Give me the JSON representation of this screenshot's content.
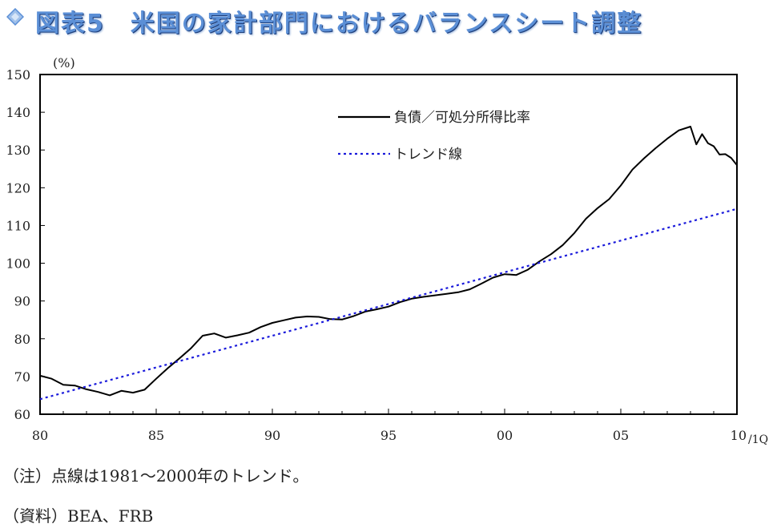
{
  "title": "図表5　米国の家計部門におけるバランスシート調整",
  "notes": {
    "note": "（注）点線は1981～2000年のトレンド。",
    "source": "（資料）BEA、FRB"
  },
  "colors": {
    "title": "#5b8fd6",
    "series_actual": "#000000",
    "series_trend": "#1a1adb"
  },
  "chart_data": {
    "type": "line",
    "unit_label": "(%)",
    "x_tick_labels": [
      "80",
      "85",
      "90",
      "95",
      "00",
      "05",
      "10"
    ],
    "x_end_suffix": "/1Q",
    "ylim": [
      60,
      150
    ],
    "y_ticks": [
      60,
      70,
      80,
      90,
      100,
      110,
      120,
      130,
      140,
      150
    ],
    "xlim": [
      1980.0,
      2010.0
    ],
    "grid": false,
    "legend_position": "top-right inside",
    "series": [
      {
        "name": "負債／可処分所得比率",
        "style": "solid",
        "x": [
          1980.0,
          1980.5,
          1981.0,
          1981.5,
          1982.0,
          1982.5,
          1983.0,
          1983.5,
          1984.0,
          1984.5,
          1985.0,
          1985.5,
          1986.0,
          1986.5,
          1987.0,
          1987.5,
          1988.0,
          1988.5,
          1989.0,
          1989.5,
          1990.0,
          1990.5,
          1991.0,
          1991.5,
          1992.0,
          1992.5,
          1993.0,
          1993.5,
          1994.0,
          1994.5,
          1995.0,
          1995.5,
          1996.0,
          1996.5,
          1997.0,
          1997.5,
          1998.0,
          1998.5,
          1999.0,
          1999.5,
          2000.0,
          2000.5,
          2001.0,
          2001.5,
          2002.0,
          2002.5,
          2003.0,
          2003.5,
          2004.0,
          2004.5,
          2005.0,
          2005.5,
          2006.0,
          2006.5,
          2007.0,
          2007.5,
          2008.0,
          2008.25,
          2008.5,
          2008.75,
          2009.0,
          2009.25,
          2009.5,
          2009.75,
          2010.0
        ],
        "values": [
          70.2,
          69.4,
          67.8,
          67.6,
          66.6,
          65.9,
          65.0,
          66.2,
          65.7,
          66.5,
          69.4,
          72.2,
          74.8,
          77.5,
          80.8,
          81.4,
          80.3,
          80.9,
          81.6,
          83.1,
          84.2,
          84.9,
          85.6,
          85.9,
          85.8,
          85.2,
          85.1,
          86.0,
          87.2,
          87.8,
          88.5,
          89.7,
          90.6,
          91.1,
          91.5,
          91.9,
          92.3,
          93.1,
          94.6,
          96.2,
          97.1,
          96.9,
          98.3,
          100.5,
          102.4,
          104.8,
          108.0,
          111.8,
          114.6,
          117.0,
          120.6,
          124.8,
          127.8,
          130.5,
          133.0,
          135.2,
          136.2,
          131.5,
          134.2,
          131.8,
          131.0,
          128.8,
          128.9,
          127.9,
          126.0
        ]
      },
      {
        "name": "トレンド線",
        "style": "dotted",
        "x": [
          1980.0,
          2010.0
        ],
        "values": [
          64.0,
          114.4
        ]
      }
    ]
  }
}
